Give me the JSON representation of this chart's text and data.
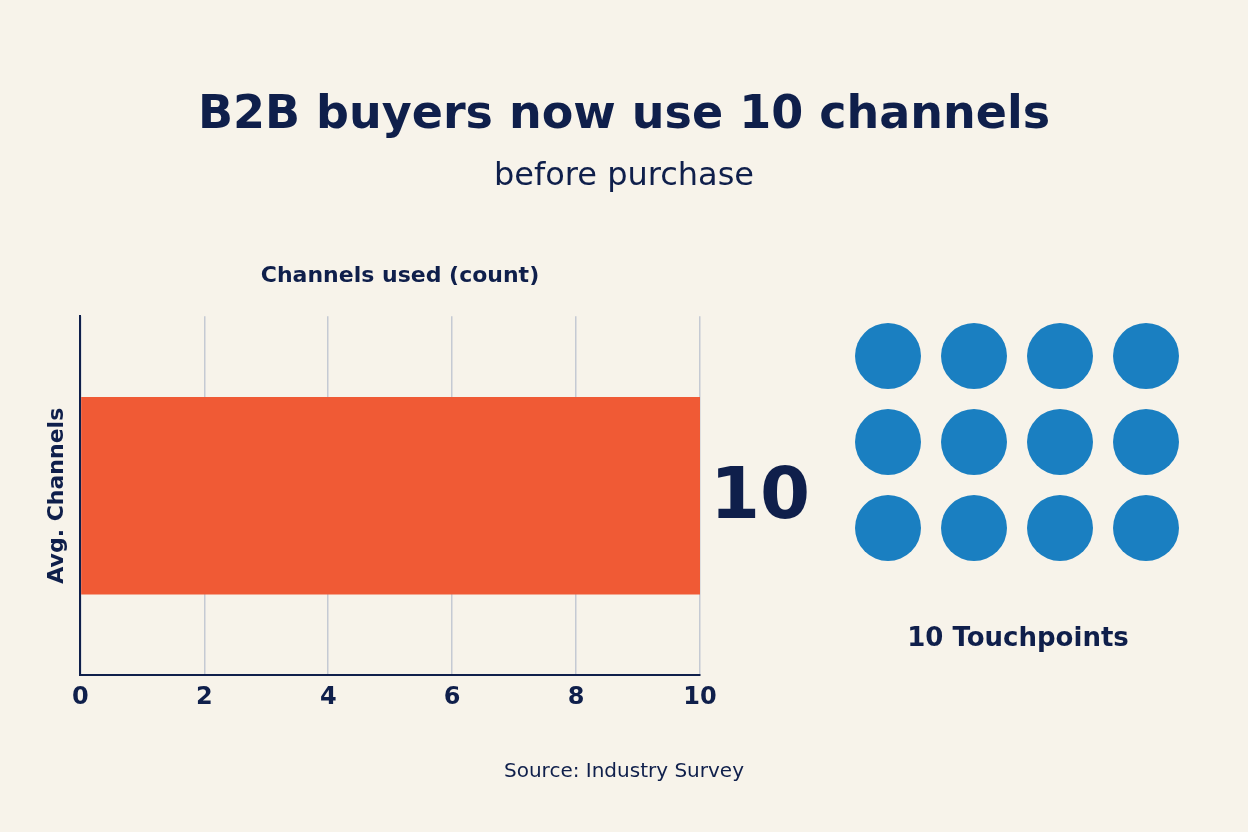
{
  "chart_data": {
    "type": "bar",
    "orientation": "horizontal",
    "title": "B2B buyers now use 10 channels",
    "subtitle": "before purchase",
    "xlabel": "Channels used (count)",
    "ylabel": "Avg. Channels",
    "categories": [
      null
    ],
    "values": [
      10
    ],
    "color": "#f05a35",
    "data_labels": true,
    "xlim": [
      0,
      10
    ],
    "xticks": [
      0,
      2,
      4,
      6,
      8,
      10
    ],
    "grid": "x",
    "annotations": [
      "10 Touchpoints",
      "Source: Industry Survey"
    ]
  }
}
